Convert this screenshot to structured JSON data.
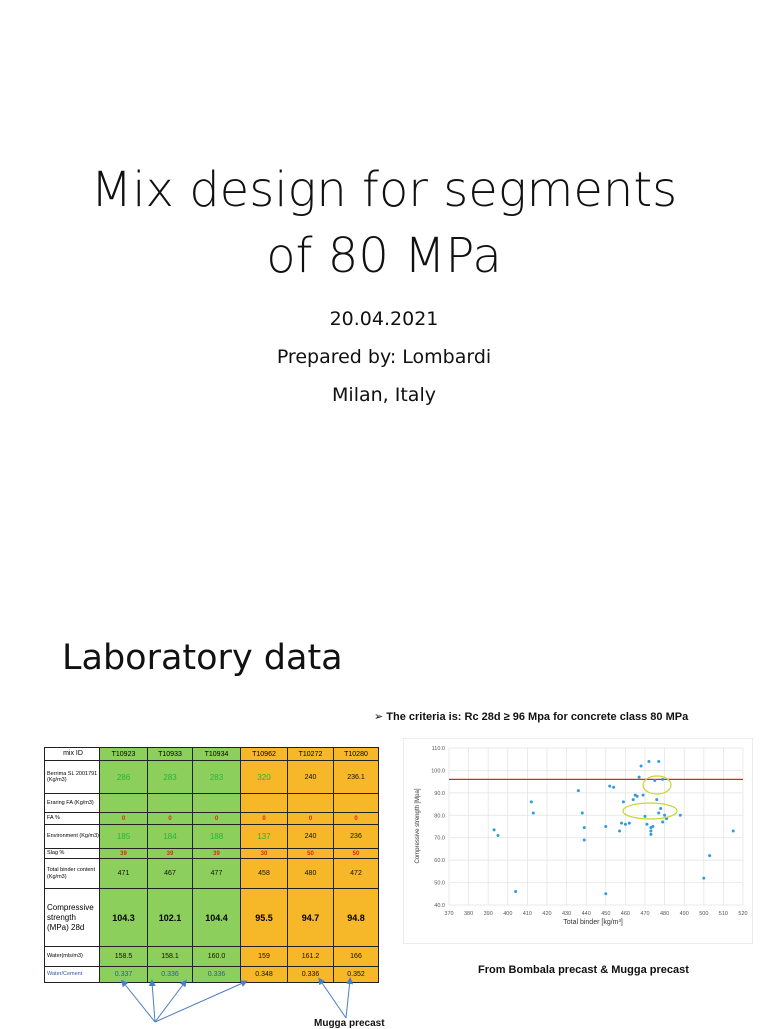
{
  "slide1": {
    "title_line1": "Mix design for segments",
    "title_line2": "of 80 MPa",
    "date": "20.04.2021",
    "prepared_by": "Prepared by: Lombardi",
    "location": "Milan, Italy"
  },
  "slide2": {
    "title": "Laboratory data",
    "criteria": "➢  The criteria is: Rc 28d ≥ 96 Mpa for concrete class 80 MPa",
    "source": "From Bombala precast & Mugga precast",
    "note": "Mugga precast",
    "table": {
      "header_label": "mix ID",
      "mix_ids": [
        "T10923",
        "T10933",
        "T10934",
        "T10962",
        "T10272",
        "T10280"
      ],
      "rows": [
        {
          "label": "Berrima SL 2001791 (Kg/m3)",
          "values": [
            "286",
            "283",
            "283",
            "320",
            "240",
            "236.1"
          ]
        },
        {
          "label": "Eraring FA (Kg/m3)",
          "values": [
            "",
            "",
            "",
            "",
            "",
            ""
          ]
        },
        {
          "label": "FA %",
          "values": [
            "0",
            "0",
            "0",
            "0",
            "0",
            "0"
          ]
        },
        {
          "label": "Environment (Kg/m3)",
          "values": [
            "185",
            "184",
            "188",
            "137",
            "240",
            "236"
          ]
        },
        {
          "label": "Slag %",
          "values": [
            "39",
            "39",
            "39",
            "30",
            "50",
            "50"
          ]
        },
        {
          "label": "Total binder content (Kg/m3)",
          "values": [
            "471",
            "467",
            "477",
            "458",
            "480",
            "472"
          ]
        },
        {
          "label": "Compressive strength (MPa) 28d",
          "values": [
            "104.3",
            "102.1",
            "104.4",
            "95.5",
            "94.7",
            "94.8"
          ]
        },
        {
          "label": "Water(mls/m3)",
          "values": [
            "158.5",
            "158.1",
            "160.0",
            "159",
            "161.2",
            "166"
          ]
        },
        {
          "label": "Water/Cement",
          "values": [
            "0.337",
            "0.336",
            "0.336",
            "0.348",
            "0.336",
            "0.352"
          ]
        }
      ]
    }
  },
  "chart_data": {
    "type": "scatter",
    "title": "",
    "xlabel": "Total binder [kg/m³]",
    "ylabel": "Compressive strength [Mpa]",
    "xlim": [
      370,
      520
    ],
    "ylim": [
      40,
      110
    ],
    "x_ticks": [
      "370",
      "380",
      "390",
      "400",
      "410",
      "420",
      "430",
      "440",
      "450",
      "460",
      "470",
      "480",
      "490",
      "500",
      "510",
      "520"
    ],
    "y_ticks": [
      "40.0",
      "50.0",
      "60.0",
      "70.0",
      "80.0",
      "90.0",
      "100.0",
      "110.0"
    ],
    "threshold": 96,
    "threshold_color": "#e3261b",
    "point_color": "#2f9be0",
    "highlight_color": "#c9d62a",
    "grid": true,
    "points": [
      [
        393,
        73.5
      ],
      [
        395,
        71
      ],
      [
        404,
        46
      ],
      [
        412,
        86
      ],
      [
        413,
        81
      ],
      [
        436,
        91
      ],
      [
        438,
        81
      ],
      [
        439,
        74.5
      ],
      [
        439,
        69
      ],
      [
        450,
        75
      ],
      [
        450,
        45
      ],
      [
        452,
        93
      ],
      [
        454,
        92.5
      ],
      [
        457,
        73
      ],
      [
        458,
        76.5
      ],
      [
        459,
        86
      ],
      [
        460,
        76
      ],
      [
        462,
        76.5
      ],
      [
        464,
        87
      ],
      [
        465,
        89
      ],
      [
        466,
        88.5
      ],
      [
        467,
        97
      ],
      [
        468,
        102
      ],
      [
        469,
        89
      ],
      [
        470,
        79.5
      ],
      [
        471,
        76
      ],
      [
        472,
        104
      ],
      [
        473,
        73
      ],
      [
        473,
        71.5
      ],
      [
        473,
        74.5
      ],
      [
        474,
        75
      ],
      [
        475,
        95.5
      ],
      [
        476,
        87
      ],
      [
        477,
        81
      ],
      [
        477,
        104
      ],
      [
        478,
        83
      ],
      [
        479,
        96
      ],
      [
        479,
        77
      ],
      [
        480,
        80
      ],
      [
        481,
        78.5
      ],
      [
        488,
        80
      ],
      [
        500,
        52
      ],
      [
        503,
        62
      ],
      [
        515,
        73
      ]
    ]
  }
}
